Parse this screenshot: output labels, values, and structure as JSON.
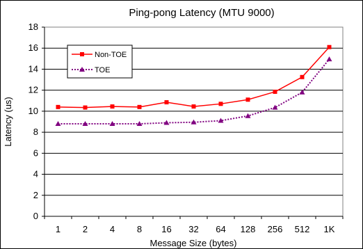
{
  "chart_data": {
    "type": "line",
    "title": "Ping-pong Latency (MTU 9000)",
    "xlabel": "Message Size (bytes)",
    "ylabel": "Latency (us)",
    "ylim": [
      0,
      18
    ],
    "yticks": [
      "0",
      "2",
      "4",
      "6",
      "8",
      "10",
      "12",
      "14",
      "16",
      "18"
    ],
    "grid": "horizontal",
    "legend_position": "upper-left inside plot",
    "categories": [
      "1",
      "2",
      "4",
      "8",
      "16",
      "32",
      "64",
      "128",
      "256",
      "512",
      "1K"
    ],
    "series": [
      {
        "name": "Non-TOE",
        "color": "#ff0000",
        "marker": "square",
        "line": "solid",
        "values": [
          10.4,
          10.35,
          10.45,
          10.4,
          10.85,
          10.45,
          10.7,
          11.1,
          11.85,
          13.25,
          16.1
        ]
      },
      {
        "name": "TOE",
        "color": "#800080",
        "marker": "triangle",
        "line": "dotted",
        "values": [
          8.8,
          8.8,
          8.8,
          8.8,
          8.9,
          8.95,
          9.1,
          9.55,
          10.35,
          11.8,
          14.95
        ]
      }
    ]
  }
}
